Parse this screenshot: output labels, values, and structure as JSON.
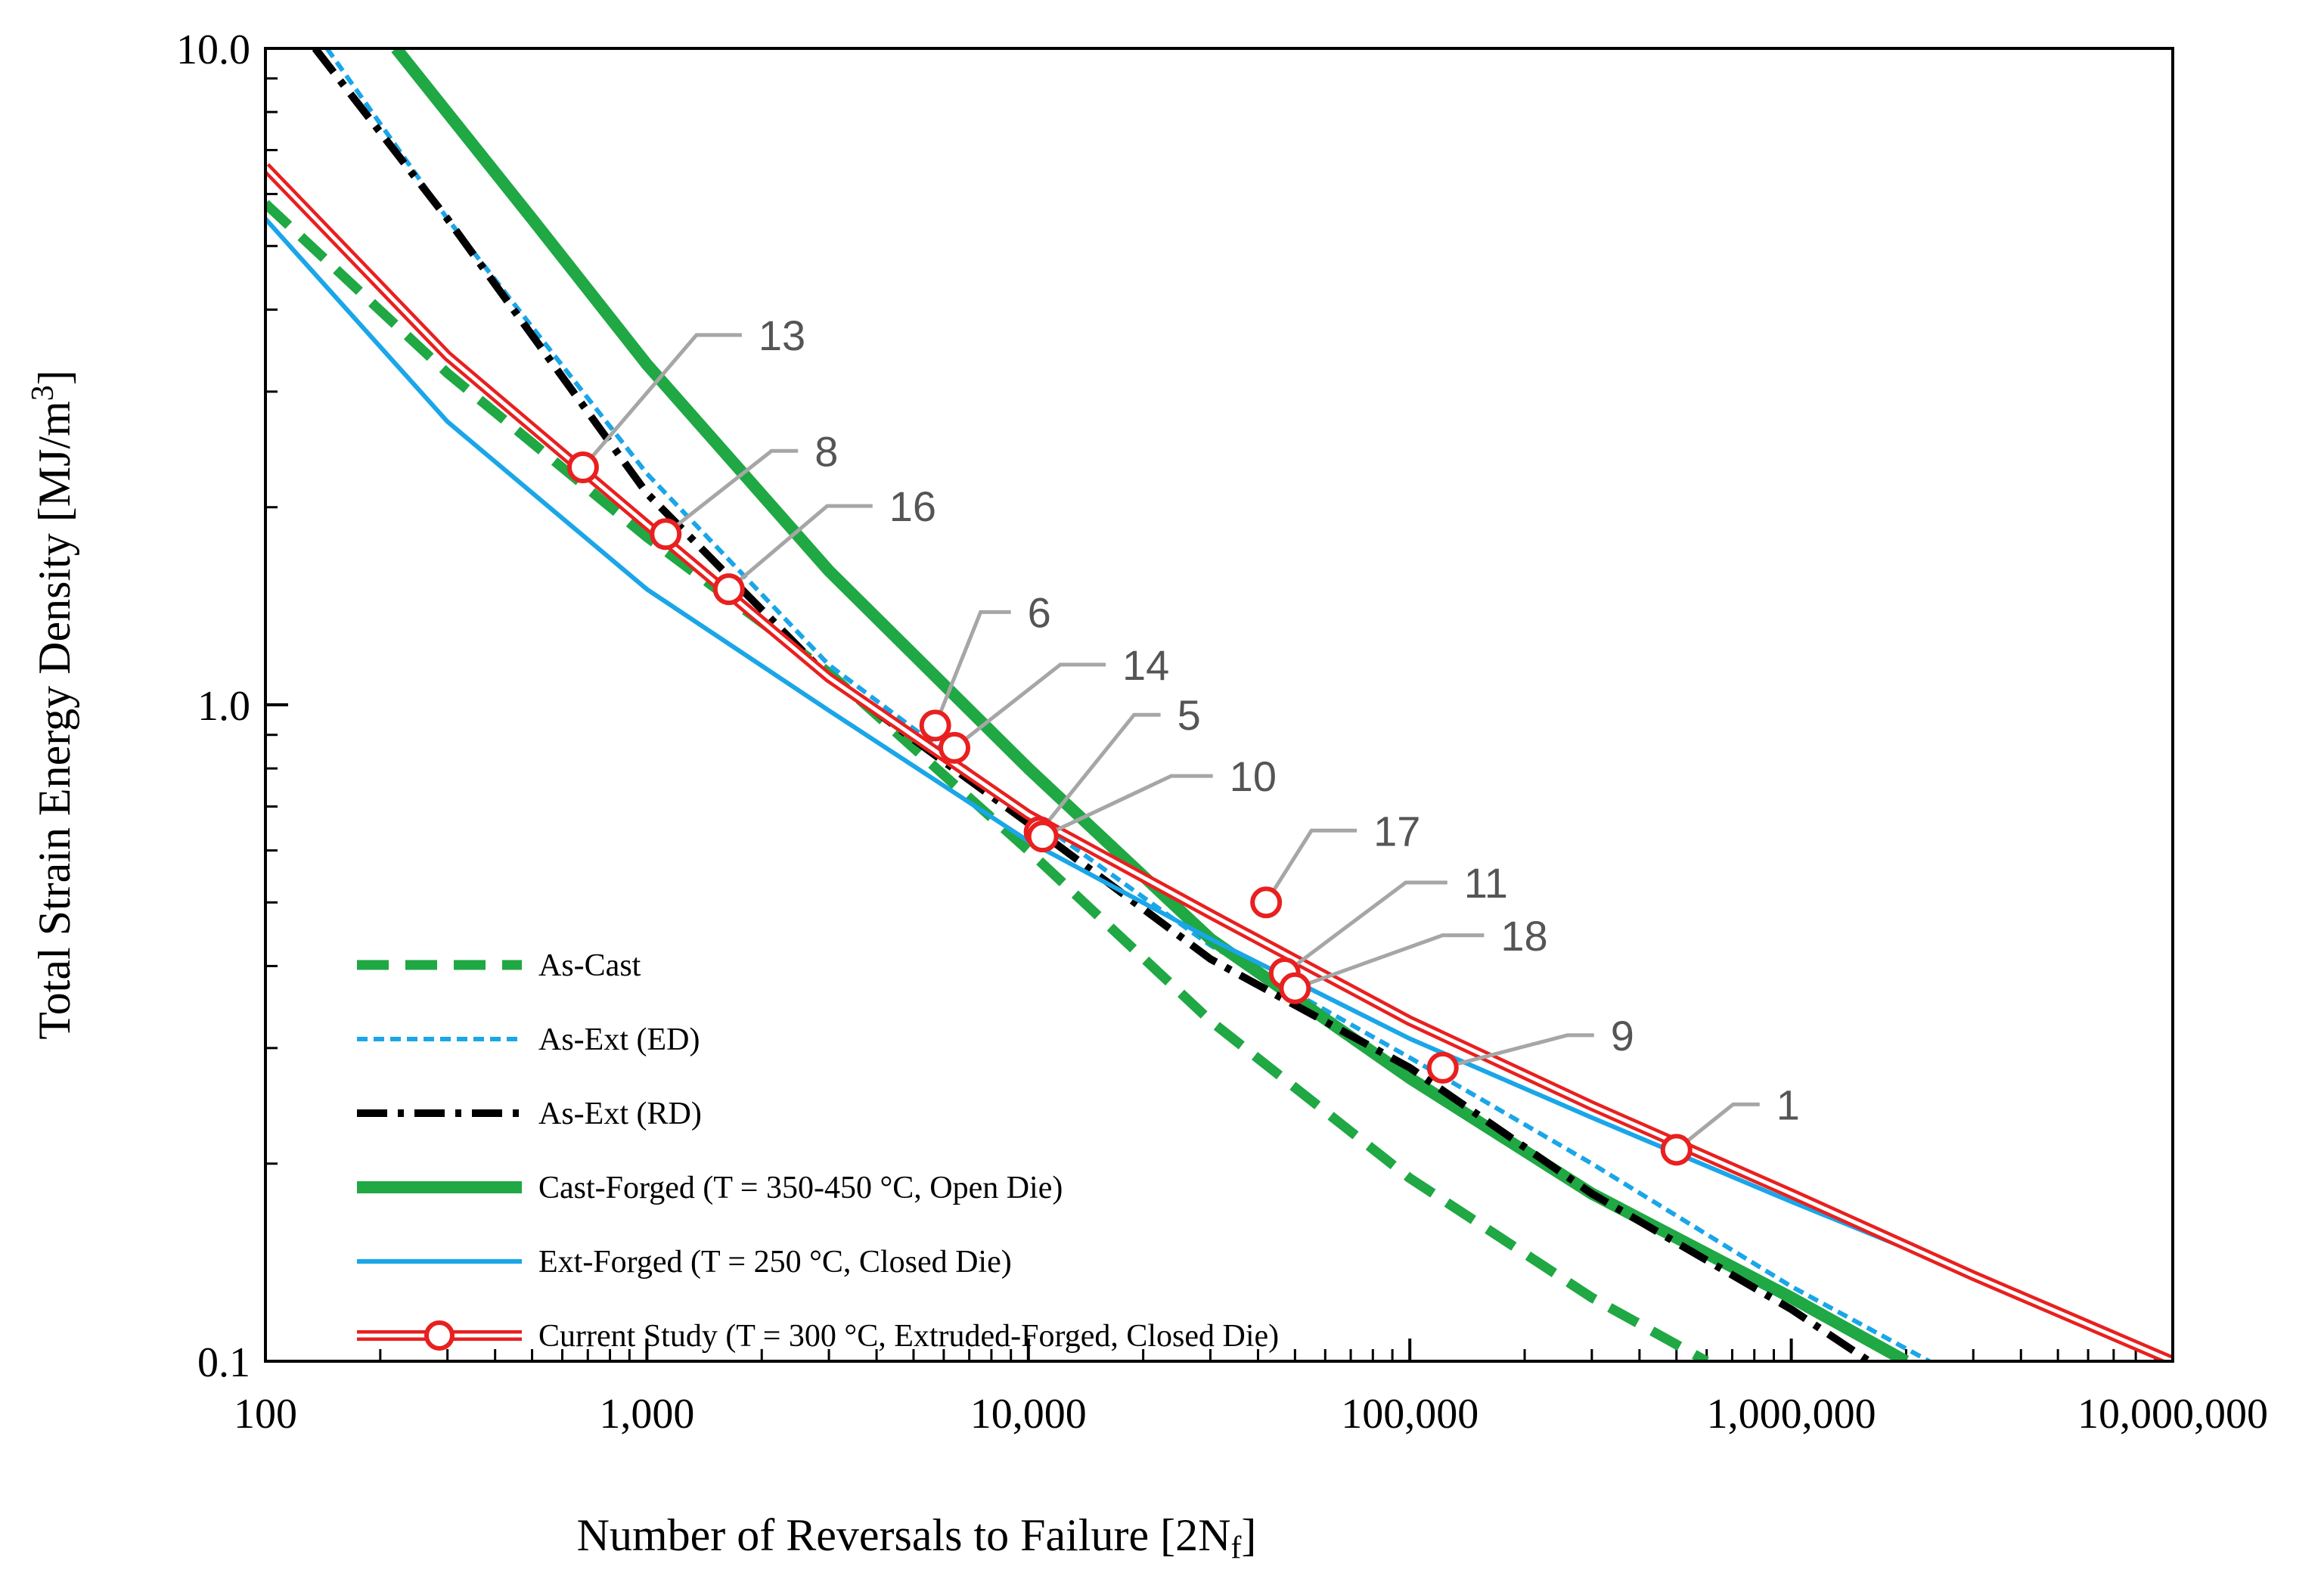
{
  "chart_data": {
    "type": "line",
    "x_scale": "log",
    "y_scale": "log",
    "xlim": [
      100,
      10000000
    ],
    "ylim": [
      0.1,
      10
    ],
    "xlabel": "Number of Reversals to Failure [2N",
    "xlabel_sub": "f",
    "xlabel_end": "]",
    "ylabel": "Total Strain Energy Density [MJ/m",
    "ylabel_sup": "3",
    "ylabel_end": "]",
    "x_ticks": [
      {
        "value": 100,
        "label": "100"
      },
      {
        "value": 1000,
        "label": "1,000"
      },
      {
        "value": 10000,
        "label": "10,000"
      },
      {
        "value": 100000,
        "label": "100,000"
      },
      {
        "value": 1000000,
        "label": "1,000,000"
      },
      {
        "value": 10000000,
        "label": "10,000,000"
      }
    ],
    "y_ticks": [
      {
        "value": 0.1,
        "label": "0.1"
      },
      {
        "value": 1,
        "label": "1.0"
      },
      {
        "value": 10,
        "label": "10.0"
      }
    ],
    "series": [
      {
        "key": "as-cast",
        "name": "As-Cast",
        "color": "#1fa843",
        "x": [
          100,
          300,
          1000,
          3000,
          10000,
          30000,
          100000,
          300000,
          600000
        ],
        "y": [
          5.8,
          3.2,
          1.8,
          1.12,
          0.6,
          0.33,
          0.19,
          0.125,
          0.1
        ]
      },
      {
        "key": "as-ext-ed",
        "name": "As-Ext (ED)",
        "color": "#1aa6e8",
        "x": [
          145,
          300,
          1000,
          3000,
          10000,
          30000,
          100000,
          300000,
          1000000,
          2300000
        ],
        "y": [
          10,
          5.5,
          2.25,
          1.15,
          0.68,
          0.43,
          0.29,
          0.2,
          0.13,
          0.1
        ]
      },
      {
        "key": "as-ext-rd",
        "name": "As-Ext (RD)",
        "color": "#000000",
        "x": [
          135,
          300,
          1000,
          3000,
          10000,
          30000,
          100000,
          300000,
          1000000,
          1600000
        ],
        "y": [
          10,
          5.5,
          2.1,
          1.1,
          0.66,
          0.41,
          0.28,
          0.18,
          0.12,
          0.1
        ]
      },
      {
        "key": "cast-forged",
        "name": "Cast-Forged (T = 350-450 °C, Open Die)",
        "color": "#1fa843",
        "x": [
          220,
          500,
          1000,
          3000,
          10000,
          30000,
          100000,
          300000,
          1000000,
          2000000
        ],
        "y": [
          10,
          5.5,
          3.3,
          1.6,
          0.8,
          0.44,
          0.27,
          0.18,
          0.125,
          0.1
        ]
      },
      {
        "key": "ext-forged",
        "name": "Ext-Forged (T = 250 °C, Closed Die)",
        "color": "#1aa6e8",
        "x": [
          100,
          300,
          1000,
          3000,
          10000,
          30000,
          100000,
          300000,
          1000000,
          3000000,
          10000000
        ],
        "y": [
          5.5,
          2.7,
          1.5,
          0.98,
          0.62,
          0.44,
          0.31,
          0.235,
          0.175,
          0.135,
          0.1
        ]
      },
      {
        "key": "current-study",
        "name": "Current Study (T = 300 °C, Extruded-Forged, Closed Die)",
        "color": "#e8201f",
        "x": [
          100,
          300,
          1000,
          3000,
          10000,
          30000,
          100000,
          300000,
          1000000,
          3000000,
          10000000
        ],
        "y": [
          6.6,
          3.4,
          1.88,
          1.1,
          0.68,
          0.48,
          0.33,
          0.245,
          0.18,
          0.135,
          0.1
        ]
      }
    ],
    "points": [
      {
        "label": "13",
        "x": 680,
        "y": 2.3
      },
      {
        "label": "8",
        "x": 1120,
        "y": 1.82
      },
      {
        "label": "16",
        "x": 1640,
        "y": 1.5
      },
      {
        "label": "6",
        "x": 5700,
        "y": 0.93
      },
      {
        "label": "14",
        "x": 6400,
        "y": 0.86
      },
      {
        "label": "5",
        "x": 10700,
        "y": 0.64
      },
      {
        "label": "10",
        "x": 10900,
        "y": 0.63
      },
      {
        "label": "17",
        "x": 42000,
        "y": 0.5
      },
      {
        "label": "11",
        "x": 47000,
        "y": 0.39
      },
      {
        "label": "18",
        "x": 50000,
        "y": 0.37
      },
      {
        "label": "9",
        "x": 122000,
        "y": 0.28
      },
      {
        "label": "1",
        "x": 500000,
        "y": 0.21
      }
    ]
  }
}
